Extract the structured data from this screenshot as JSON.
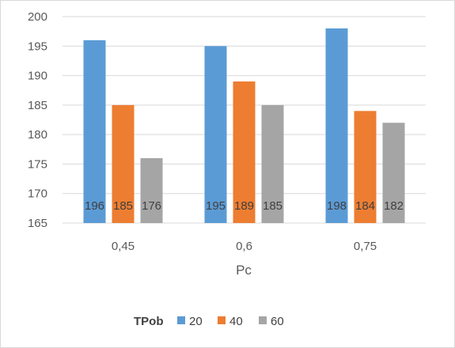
{
  "chart_data": {
    "type": "bar",
    "categories": [
      "0,45",
      "0,6",
      "0,75"
    ],
    "series": [
      {
        "name": "20",
        "color": "#5b9bd5",
        "values": [
          196,
          195,
          198
        ]
      },
      {
        "name": "40",
        "color": "#ed7d31",
        "values": [
          185,
          189,
          184
        ]
      },
      {
        "name": "60",
        "color": "#a5a5a5",
        "values": [
          176,
          185,
          182
        ]
      }
    ],
    "data_labels": [
      [
        "196",
        "185",
        "176"
      ],
      [
        "195",
        "189",
        "185"
      ],
      [
        "198",
        "184",
        "182"
      ]
    ],
    "title": "",
    "xlabel": "Pc",
    "ylabel": "",
    "ylim": [
      165,
      200
    ],
    "ytick_step": 5,
    "yticks": [
      "165",
      "170",
      "175",
      "180",
      "185",
      "190",
      "195",
      "200"
    ],
    "grid": true,
    "grid_color": "#d9d9d9",
    "legend": {
      "title": "TPob",
      "position": "bottom"
    }
  }
}
